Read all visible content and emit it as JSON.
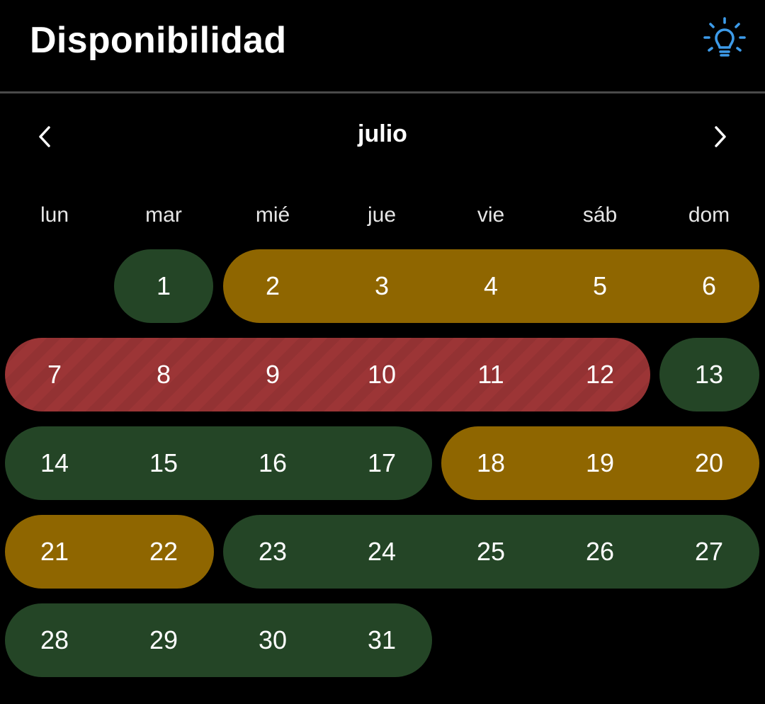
{
  "header": {
    "title": "Disponibilidad",
    "icon": "lightbulb-icon",
    "accent_color": "#3d9be9"
  },
  "calendar": {
    "month": "julio",
    "prev_icon": "chevron-left-icon",
    "next_icon": "chevron-right-icon",
    "weekdays": [
      "lun",
      "mar",
      "mié",
      "jue",
      "vie",
      "sáb",
      "dom"
    ],
    "days": [
      "1",
      "2",
      "3",
      "4",
      "5",
      "6",
      "7",
      "8",
      "9",
      "10",
      "11",
      "12",
      "13",
      "14",
      "15",
      "16",
      "17",
      "18",
      "19",
      "20",
      "21",
      "22",
      "23",
      "24",
      "25",
      "26",
      "27",
      "28",
      "29",
      "30",
      "31"
    ],
    "status_colors": {
      "available": "#244526",
      "partial": "#8f6600",
      "unavailable": "#9c3536"
    }
  }
}
